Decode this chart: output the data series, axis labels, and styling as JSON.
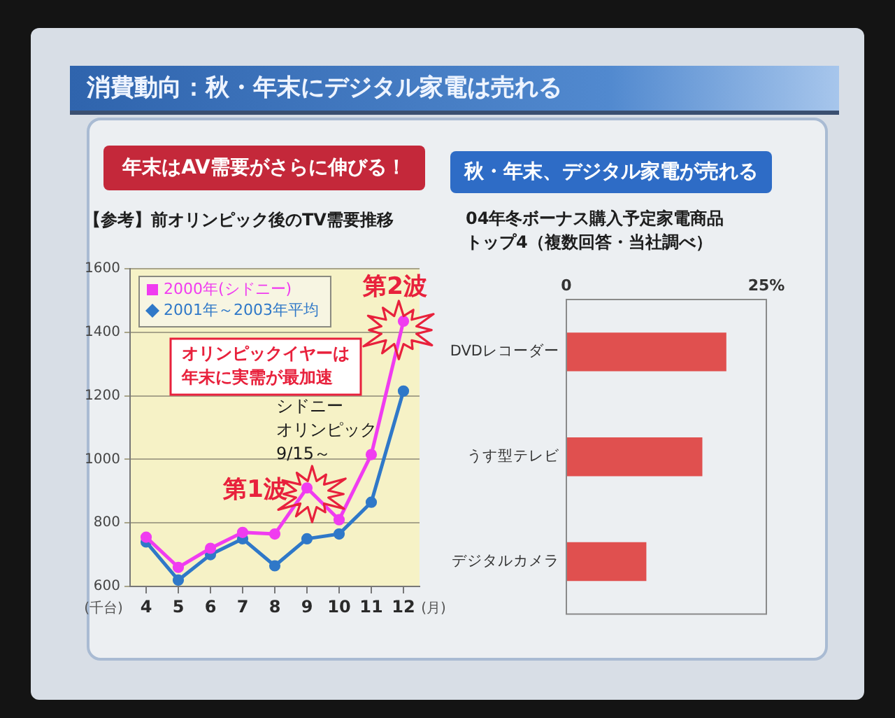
{
  "chart_data": [
    {
      "type": "other",
      "title": "消費動向：秋・年末にデジタル家電は売れる"
    },
    {
      "type": "line",
      "title": "年末はAV需要がさらに伸びる！",
      "subtitle": "【参考】前オリンピック後のTV需要推移",
      "ylabel": "(千台)",
      "xlabel": "(月)",
      "categories": [
        "4",
        "5",
        "6",
        "7",
        "8",
        "9",
        "10",
        "11",
        "12"
      ],
      "series": [
        {
          "name": "2000年(シドニー)",
          "color": "#f03cf0",
          "values": [
            755,
            660,
            720,
            770,
            765,
            910,
            810,
            1015,
            1435
          ]
        },
        {
          "name": "2001年～2003年平均",
          "color": "#2f78c8",
          "values": [
            740,
            620,
            700,
            750,
            665,
            750,
            765,
            865,
            1215
          ]
        }
      ],
      "ylim": [
        600,
        1600
      ],
      "yticks": [
        600,
        800,
        1000,
        1200,
        1400,
        1600
      ],
      "grid": "y",
      "legend": "top left",
      "marker": "circle",
      "annotations": [
        "オリンピックイヤーは年末に実需が最加速",
        {
          "text": "シドニーオリンピック9/15～",
          "x": "9",
          "y": 910
        },
        {
          "text": "第1波",
          "x": "9",
          "y": 910
        },
        {
          "text": "第2波",
          "x": "12",
          "y": 1435
        }
      ]
    },
    {
      "type": "bar",
      "orientation": "horizontal",
      "title": "秋・年末、デジタル家電が売れる",
      "subtitle": "04年冬ボーナス購入予定家電商品トップ4（複数回答・当社調べ）",
      "categories": [
        "DVDレコーダー",
        "うす型テレビ",
        "デジタルカメラ"
      ],
      "values": [
        20,
        17,
        10
      ],
      "color": "#e0504f",
      "xlim": [
        0,
        25
      ],
      "xticks": [
        0,
        {
          "value": 25,
          "label": "25%"
        }
      ]
    }
  ]
}
